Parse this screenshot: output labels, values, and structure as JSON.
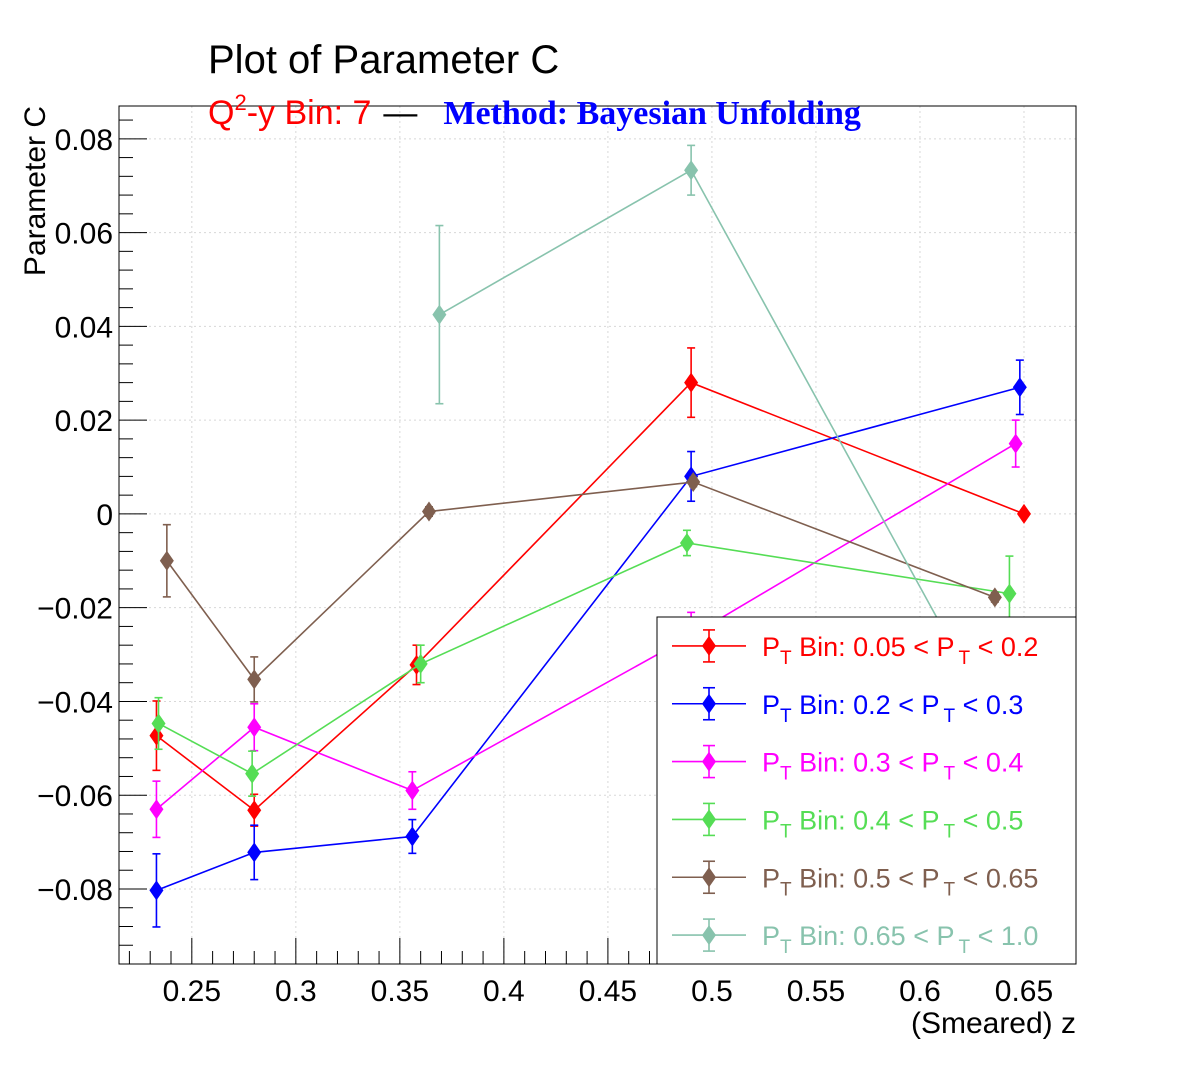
{
  "title": "Plot of Parameter C",
  "subtitle": {
    "bin_label_prefix": "Q",
    "bin_label_sup": "2",
    "bin_label_rest": "-y Bin: 7",
    "separator": "—",
    "method": "Method: Bayesian Unfolding",
    "bin_color": "#ff0000",
    "method_color": "#0000ff"
  },
  "chart_data": {
    "type": "scatter",
    "xlabel": "(Smeared) z",
    "ylabel": "Parameter C",
    "xlim": [
      0.215,
      0.675
    ],
    "ylim": [
      -0.096,
      0.087
    ],
    "x_ticks": [
      "0.25",
      "0.3",
      "0.35",
      "0.4",
      "0.45",
      "0.5",
      "0.55",
      "0.6",
      "0.65"
    ],
    "y_ticks": [
      "0.08",
      "0.06",
      "0.04",
      "0.02",
      "0",
      "−0.02",
      "−0.04",
      "−0.06",
      "−0.08"
    ],
    "grid": true,
    "legend_position": "bottom-right",
    "series": [
      {
        "name_prefix": "P",
        "name_sub": "T",
        "name_mid": " Bin: 0.05 < P",
        "name_sub2": "T",
        "name_end": " < 0.2",
        "color": "#ff0000",
        "points": [
          {
            "x": 0.233,
            "y": -0.0473,
            "err": 0.0074
          },
          {
            "x": 0.28,
            "y": -0.0632,
            "err": 0.0034
          },
          {
            "x": 0.358,
            "y": -0.0322,
            "err": 0.0042
          },
          {
            "x": 0.49,
            "y": 0.028,
            "err": 0.0074
          },
          {
            "x": 0.65,
            "y": 0.0,
            "err": 0.0007
          }
        ]
      },
      {
        "name_prefix": "P",
        "name_sub": "T",
        "name_mid": " Bin: 0.2 < P",
        "name_sub2": "T",
        "name_end": " < 0.3",
        "color": "#0000ff",
        "points": [
          {
            "x": 0.233,
            "y": -0.0803,
            "err": 0.0078
          },
          {
            "x": 0.28,
            "y": -0.0722,
            "err": 0.0058
          },
          {
            "x": 0.356,
            "y": -0.0688,
            "err": 0.0036
          },
          {
            "x": 0.49,
            "y": 0.008,
            "err": 0.0053
          },
          {
            "x": 0.648,
            "y": 0.027,
            "err": 0.0058
          }
        ]
      },
      {
        "name_prefix": "P",
        "name_sub": "T",
        "name_mid": " Bin: 0.3 < P",
        "name_sub2": "T",
        "name_end": " < 0.4",
        "color": "#ff00ff",
        "points": [
          {
            "x": 0.233,
            "y": -0.063,
            "err": 0.006
          },
          {
            "x": 0.28,
            "y": -0.0455,
            "err": 0.005
          },
          {
            "x": 0.356,
            "y": -0.059,
            "err": 0.004
          },
          {
            "x": 0.49,
            "y": -0.026,
            "err": 0.005
          },
          {
            "x": 0.646,
            "y": 0.015,
            "err": 0.005
          }
        ]
      },
      {
        "name_prefix": "P",
        "name_sub": "T",
        "name_mid": " Bin: 0.4 < P",
        "name_sub2": "T",
        "name_end": " < 0.5",
        "color": "#55dd55",
        "points": [
          {
            "x": 0.234,
            "y": -0.0447,
            "err": 0.0055
          },
          {
            "x": 0.279,
            "y": -0.0554,
            "err": 0.0048
          },
          {
            "x": 0.36,
            "y": -0.032,
            "err": 0.004
          },
          {
            "x": 0.488,
            "y": -0.0062,
            "err": 0.0027
          },
          {
            "x": 0.643,
            "y": -0.017,
            "err": 0.008
          }
        ]
      },
      {
        "name_prefix": "P",
        "name_sub": "T",
        "name_mid": " Bin: 0.5 < P",
        "name_sub2": "T",
        "name_end": " < 0.65",
        "color": "#7f5f4f",
        "points": [
          {
            "x": 0.238,
            "y": -0.01,
            "err": 0.0077
          },
          {
            "x": 0.28,
            "y": -0.0353,
            "err": 0.0048
          },
          {
            "x": 0.364,
            "y": 0.0005,
            "err": 0.001
          },
          {
            "x": 0.491,
            "y": 0.0068,
            "err": 0.001
          },
          {
            "x": 0.636,
            "y": -0.0178,
            "err": 0.001
          }
        ]
      },
      {
        "name_prefix": "P",
        "name_sub": "T",
        "name_mid": " Bin: 0.65 < P",
        "name_sub2": "T",
        "name_end": " < 1.0",
        "color": "#88c3ad",
        "points": [
          {
            "x": 0.369,
            "y": 0.0425,
            "err": 0.019
          },
          {
            "x": 0.49,
            "y": 0.0733,
            "err": 0.0053
          },
          {
            "x": 0.655,
            "y": -0.06,
            "err": 0.005
          }
        ]
      }
    ]
  }
}
